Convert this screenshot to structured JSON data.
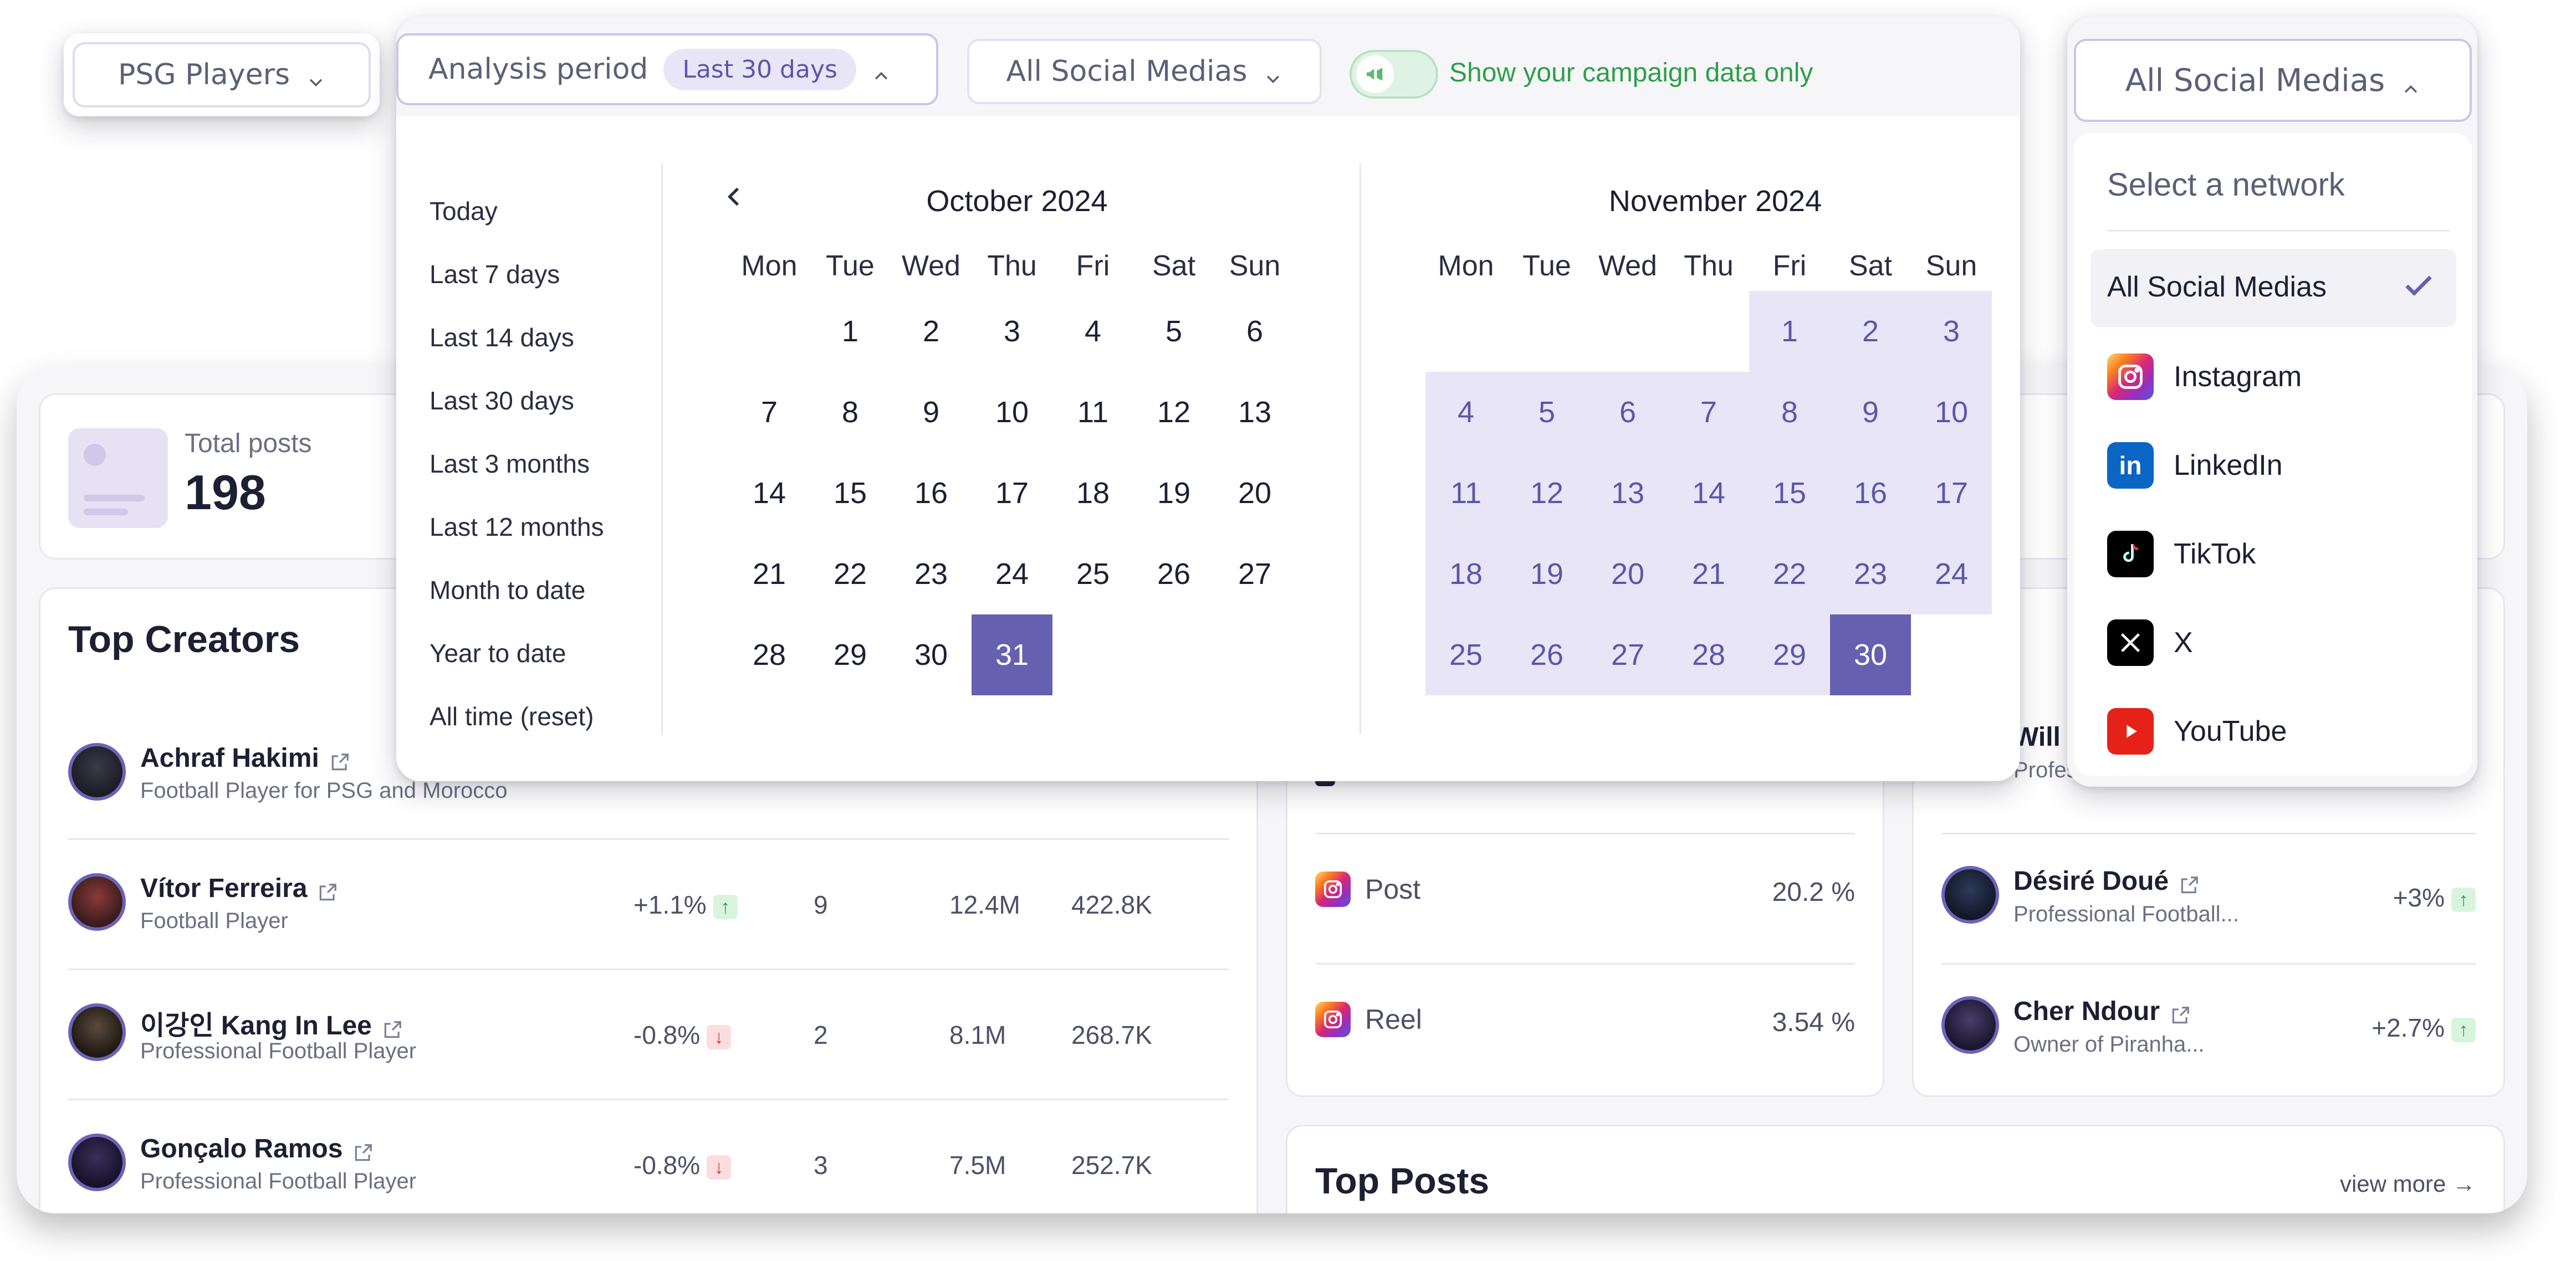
{
  "toolbar": {
    "group_filter": "PSG Players",
    "analysis_label": "Analysis period",
    "analysis_value": "Last 30 days",
    "social_filter": "All Social Medias",
    "campaign_toggle_label": "Show your campaign data only"
  },
  "network_dropdown": {
    "button_label": "All Social Medias",
    "heading": "Select a network",
    "items": [
      {
        "label": "All Social Medias",
        "selected": true
      },
      {
        "label": "Instagram",
        "icon": "instagram-icon"
      },
      {
        "label": "LinkedIn",
        "icon": "linkedin-icon"
      },
      {
        "label": "TikTok",
        "icon": "tiktok-icon"
      },
      {
        "label": "X",
        "icon": "x-icon"
      },
      {
        "label": "YouTube",
        "icon": "youtube-icon"
      }
    ]
  },
  "date_picker": {
    "presets": [
      "Today",
      "Last 7 days",
      "Last 14 days",
      "Last 30 days",
      "Last 3 months",
      "Last 12 months",
      "Month to date",
      "Year to date",
      "All time (reset)"
    ],
    "weekdays": [
      "Mon",
      "Tue",
      "Wed",
      "Thu",
      "Fri",
      "Sat",
      "Sun"
    ],
    "left_month": {
      "title": "October 2024",
      "first_weekday_index": 1,
      "days": 31,
      "selected_end": 31
    },
    "right_month": {
      "title": "November 2024",
      "first_weekday_index": 4,
      "days": 30,
      "selected_end": 30
    }
  },
  "stats": {
    "total_posts_label": "Total posts",
    "total_posts_value": "198"
  },
  "top_creators": {
    "title": "Top Creators",
    "rows": [
      {
        "name": "Achraf Hakimi",
        "subtitle": "Football Player for PSG and Morocco",
        "change": "",
        "trend": "",
        "posts": "",
        "reach": "",
        "engagement": ""
      },
      {
        "name": "Vítor Ferreira",
        "subtitle": "Football Player",
        "change": "+1.1%",
        "trend": "up",
        "posts": "9",
        "reach": "12.4M",
        "engagement": "422.8K"
      },
      {
        "name": "이강인 Kang In Lee",
        "subtitle": "Professional Football Player",
        "change": "-0.8%",
        "trend": "down",
        "posts": "2",
        "reach": "8.1M",
        "engagement": "268.7K"
      },
      {
        "name": "Gonçalo Ramos",
        "subtitle": "Professional Football Player",
        "change": "-0.8%",
        "trend": "down",
        "posts": "3",
        "reach": "7.5M",
        "engagement": "252.7K"
      }
    ]
  },
  "formats": {
    "rows": [
      {
        "label": "Post",
        "value": "20.2 %"
      },
      {
        "label": "Reel",
        "value": "3.54 %"
      }
    ]
  },
  "right_creators": {
    "rows": [
      {
        "name": "Will",
        "subtitle": "Professional Soccer...",
        "change": "",
        "trend": ""
      },
      {
        "name": "Désiré Doué",
        "subtitle": "Professional Football...",
        "change": "+3%",
        "trend": "up"
      },
      {
        "name": "Cher Ndour",
        "subtitle": "Owner of Piranha...",
        "change": "+2.7%",
        "trend": "up"
      }
    ]
  },
  "top_posts": {
    "title": "Top Posts",
    "view_more": "view more"
  },
  "colors": {
    "accent": "#6660b0",
    "range": "#e8e6f6",
    "campaign_green": "#2f9e4a"
  }
}
